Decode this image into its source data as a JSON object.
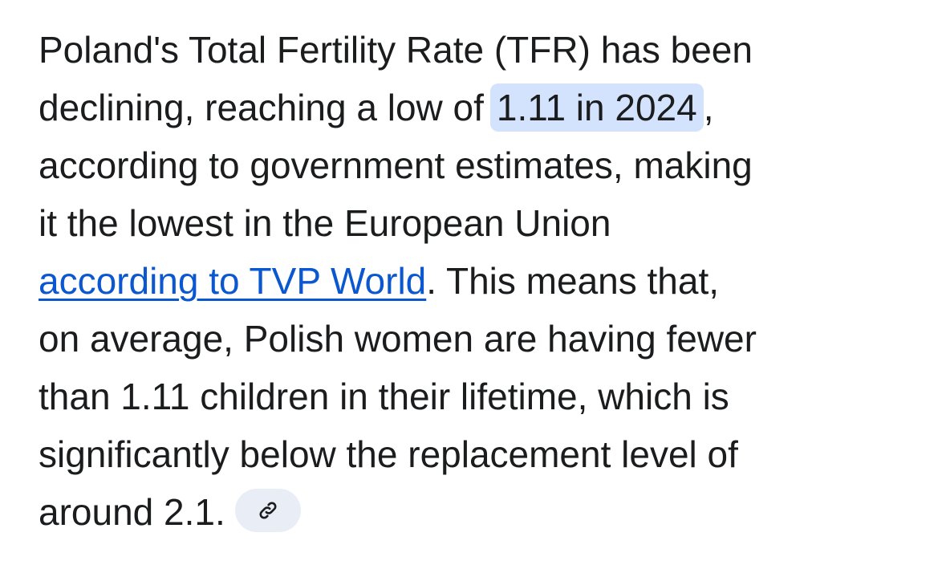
{
  "paragraph": {
    "line1": "Poland's Total Fertility Rate (TFR) has been",
    "line2_before": "declining, reaching a low of",
    "highlight": "1.11 in 2024",
    "line2_after": ",",
    "line3": "according to government estimates, making",
    "line4": "it the lowest in the European Union",
    "link": "according to TVP World",
    "line5_after": ". This means that,",
    "line6": "on average, Polish women are having fewer",
    "line7": "than 1.11 children in their lifetime, which is",
    "line8": "significantly below the replacement level of",
    "line9": "around 2.1."
  }
}
